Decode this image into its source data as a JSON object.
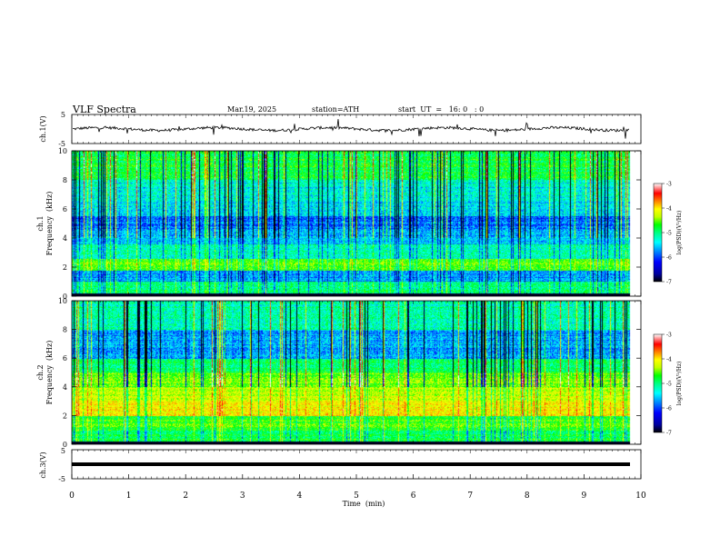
{
  "header": {
    "title": "VLF  Spectra",
    "date": "Mar.19, 2025",
    "station": "station=ATH",
    "start": "start  UT  =   16: 0   : 0"
  },
  "chart_data": [
    {
      "type": "line",
      "panel": "ch1-waveform",
      "ylabel": "ch.1(V)",
      "ylim": [
        -5,
        5
      ],
      "yticks": [
        "5",
        "-5"
      ],
      "xlim": [
        0,
        10
      ]
    },
    {
      "type": "heatmap",
      "panel": "ch1-spectrogram",
      "ylabel": [
        "ch.1",
        "Frequency  (kHz)"
      ],
      "ylim": [
        0,
        10
      ],
      "yticks": [
        "0",
        "2",
        "4",
        "6",
        "8",
        "10"
      ],
      "xlim": [
        0,
        10
      ],
      "colorbar": {
        "label": "log(PSD)(V²/Hz)",
        "range": [
          -7,
          -3
        ],
        "ticks": [
          "-3",
          "-4",
          "-5",
          "-6",
          "-7"
        ]
      }
    },
    {
      "type": "heatmap",
      "panel": "ch2-spectrogram",
      "ylabel": [
        "ch.2",
        "Frequency  (kHz)"
      ],
      "ylim": [
        0,
        10
      ],
      "yticks": [
        "0",
        "2",
        "4",
        "6",
        "8",
        "10"
      ],
      "xlim": [
        0,
        10
      ],
      "colorbar": {
        "label": "log(PSD)(V²/Hz)",
        "range": [
          -7,
          -3
        ],
        "ticks": [
          "-3",
          "-4",
          "-5",
          "-6",
          "-7"
        ]
      }
    },
    {
      "type": "line",
      "panel": "ch3-waveform",
      "ylabel": "ch.3(V)",
      "ylim": [
        -5,
        5
      ],
      "yticks": [
        "5",
        "-5"
      ],
      "xlim": [
        0,
        10
      ],
      "xlabel": "Time  (min)",
      "xticks": [
        "0",
        "1",
        "2",
        "3",
        "4",
        "5",
        "6",
        "7",
        "8",
        "9",
        "10"
      ]
    }
  ],
  "colormap": [
    "#000000",
    "#0000a0",
    "#0000ff",
    "#0080ff",
    "#00ffff",
    "#00ff80",
    "#00ff00",
    "#c0ff00",
    "#ffff00",
    "#ff8000",
    "#ff0000",
    "#ffffff"
  ]
}
